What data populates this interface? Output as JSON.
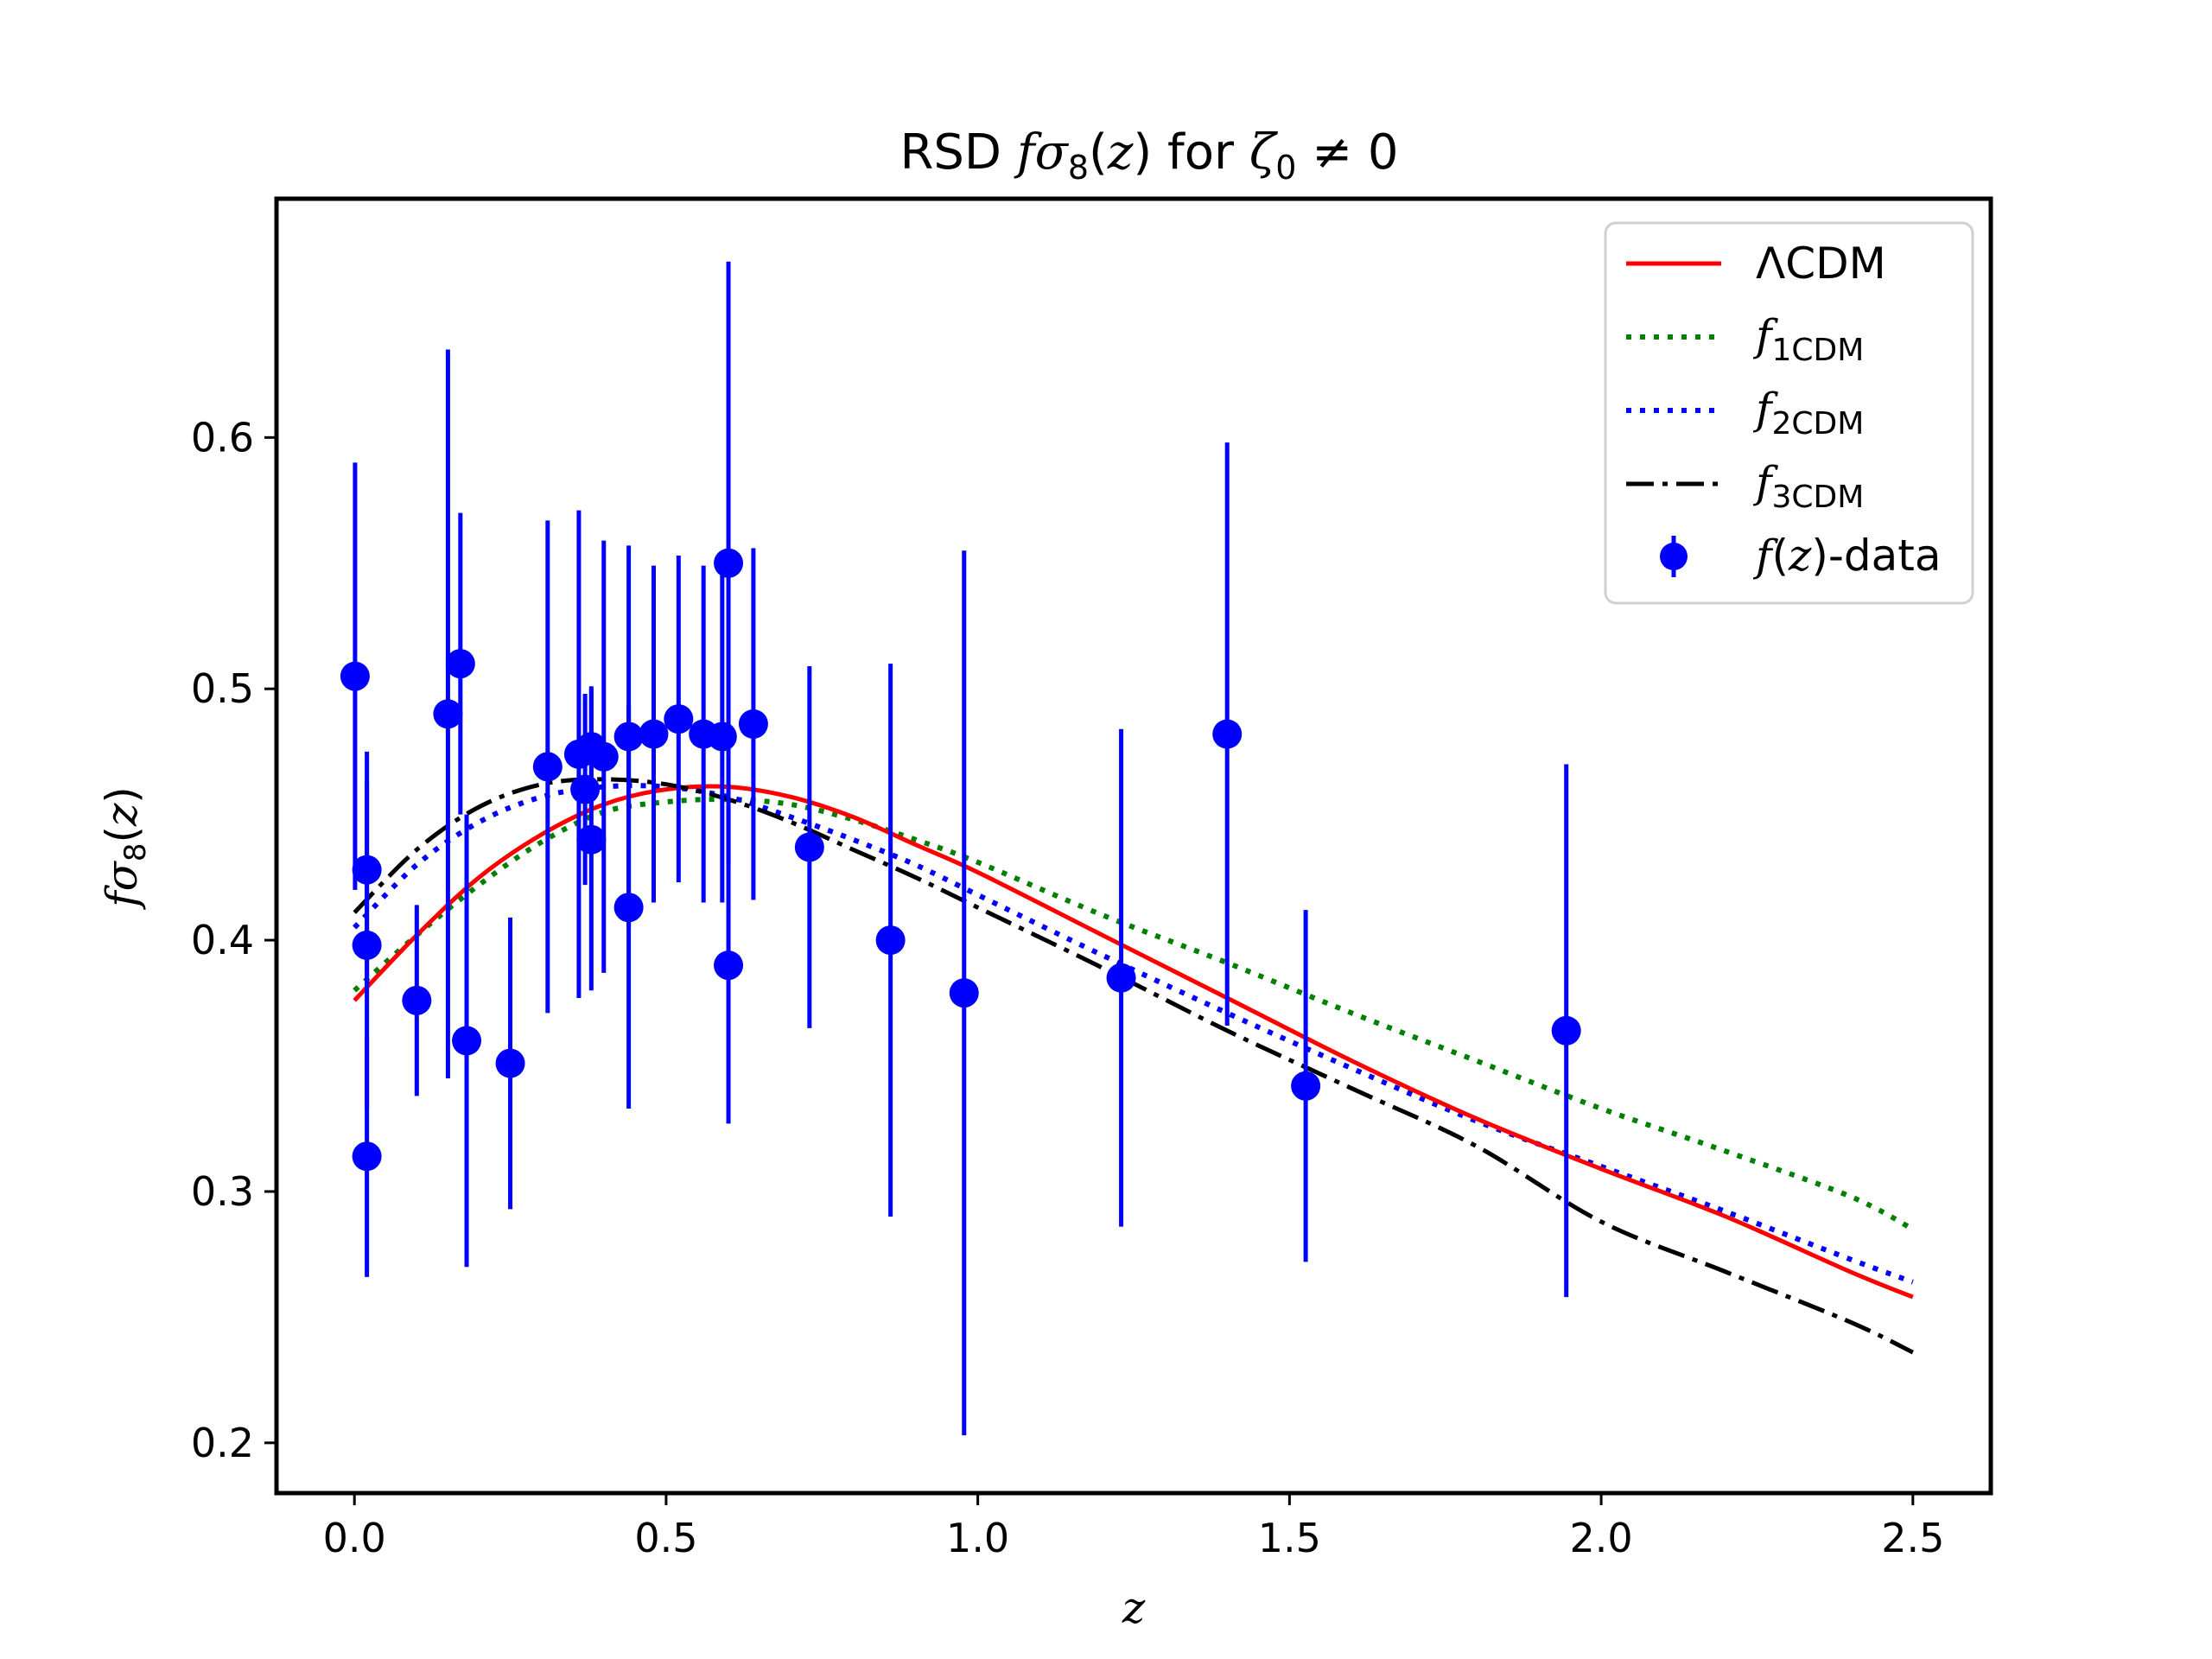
{
  "chart_data": {
    "type": "line",
    "title": {
      "prefix": "RSD ",
      "f": "f",
      "sigma": "σ",
      "sigma_sub": "8",
      "zexpr_open": "(",
      "zexpr_z": "z",
      "zexpr_close": ")",
      "middle": " for ",
      "zeta": "ζ",
      "zeta_sub": "0",
      "suffix": " ≠ 0"
    },
    "xlabel": "z",
    "ylabel": {
      "f": "f",
      "sigma": "σ",
      "sub": "8",
      "open": "(",
      "z": "z",
      "close": ")"
    },
    "xlim": [
      -0.125,
      2.625
    ],
    "ylim": [
      0.18,
      0.695
    ],
    "xticks": [
      0.0,
      0.5,
      1.0,
      1.5,
      2.0,
      2.5
    ],
    "xtick_labels": [
      "0.0",
      "0.5",
      "1.0",
      "1.5",
      "2.0",
      "2.5"
    ],
    "yticks": [
      0.2,
      0.3,
      0.4,
      0.5,
      0.6
    ],
    "ytick_labels": [
      "0.2",
      "0.3",
      "0.4",
      "0.5",
      "0.6"
    ],
    "grid": false,
    "legend_position": "top-right",
    "series": [
      {
        "name": "ΛCDM",
        "legend_main": "ΛCDM",
        "legend_sub": "",
        "color": "#ff0000",
        "style": "solid",
        "x": [
          0.0,
          0.1,
          0.2,
          0.3,
          0.4,
          0.5,
          0.6,
          0.7,
          0.8,
          0.9,
          1.0,
          1.2,
          1.4,
          1.6,
          1.8,
          2.0,
          2.2,
          2.4,
          2.5
        ],
        "y": [
          0.376,
          0.402,
          0.425,
          0.442,
          0.454,
          0.46,
          0.461,
          0.457,
          0.449,
          0.438,
          0.427,
          0.402,
          0.377,
          0.352,
          0.329,
          0.309,
          0.29,
          0.268,
          0.258
        ]
      },
      {
        "name": "f1CDM",
        "legend_main": "f",
        "legend_sub": "1CDM",
        "color": "#008000",
        "style": "dotted",
        "x": [
          0.0,
          0.1,
          0.2,
          0.3,
          0.4,
          0.5,
          0.6,
          0.7,
          0.8,
          0.9,
          1.0,
          1.2,
          1.4,
          1.6,
          1.8,
          2.0,
          2.2,
          2.4,
          2.5
        ],
        "y": [
          0.38,
          0.402,
          0.422,
          0.439,
          0.451,
          0.455,
          0.456,
          0.454,
          0.448,
          0.44,
          0.431,
          0.41,
          0.391,
          0.371,
          0.352,
          0.333,
          0.316,
          0.298,
          0.285
        ]
      },
      {
        "name": "f2CDM",
        "legend_main": "f",
        "legend_sub": "2CDM",
        "color": "#0000ff",
        "style": "dotted",
        "x": [
          0.0,
          0.1,
          0.2,
          0.3,
          0.4,
          0.5,
          0.6,
          0.7,
          0.8,
          0.9,
          1.0,
          1.2,
          1.4,
          1.6,
          1.8,
          2.0,
          2.2,
          2.4,
          2.5
        ],
        "y": [
          0.405,
          0.43,
          0.447,
          0.457,
          0.461,
          0.461,
          0.457,
          0.449,
          0.44,
          0.43,
          0.418,
          0.394,
          0.371,
          0.349,
          0.328,
          0.31,
          0.292,
          0.273,
          0.264
        ]
      },
      {
        "name": "f3CDM",
        "legend_main": "f",
        "legend_sub": "3CDM",
        "color": "#000000",
        "style": "dashdot",
        "x": [
          0.0,
          0.1,
          0.2,
          0.3,
          0.4,
          0.5,
          0.6,
          0.7,
          0.8,
          0.9,
          1.0,
          1.2,
          1.4,
          1.6,
          1.8,
          2.0,
          2.2,
          2.4,
          2.5
        ],
        "y": [
          0.411,
          0.436,
          0.453,
          0.462,
          0.464,
          0.462,
          0.456,
          0.447,
          0.436,
          0.425,
          0.413,
          0.389,
          0.364,
          0.341,
          0.318,
          0.288,
          0.268,
          0.248,
          0.236
        ]
      }
    ],
    "data_points": {
      "name": "f(z)-data",
      "legend_f": "f",
      "legend_open": "(",
      "legend_z": "z",
      "legend_tail": ")-data",
      "color": "#0000ff",
      "points": [
        {
          "z": 0.001,
          "y": 0.505,
          "err": 0.085
        },
        {
          "z": 0.02,
          "y": 0.428,
          "err": 0.047
        },
        {
          "z": 0.02,
          "y": 0.398,
          "err": 0.065
        },
        {
          "z": 0.02,
          "y": 0.314,
          "err": 0.048
        },
        {
          "z": 0.1,
          "y": 0.376,
          "err": 0.038
        },
        {
          "z": 0.15,
          "y": 0.49,
          "err": 0.145
        },
        {
          "z": 0.17,
          "y": 0.51,
          "err": 0.06
        },
        {
          "z": 0.18,
          "y": 0.36,
          "err": 0.09
        },
        {
          "z": 0.25,
          "y": 0.351,
          "err": 0.058
        },
        {
          "z": 0.31,
          "y": 0.469,
          "err": 0.098
        },
        {
          "z": 0.36,
          "y": 0.474,
          "err": 0.097
        },
        {
          "z": 0.37,
          "y": 0.46,
          "err": 0.038
        },
        {
          "z": 0.38,
          "y": 0.44,
          "err": 0.06
        },
        {
          "z": 0.38,
          "y": 0.477,
          "err": 0.024
        },
        {
          "z": 0.4,
          "y": 0.473,
          "err": 0.086
        },
        {
          "z": 0.44,
          "y": 0.413,
          "err": 0.08
        },
        {
          "z": 0.44,
          "y": 0.481,
          "err": 0.076
        },
        {
          "z": 0.48,
          "y": 0.482,
          "err": 0.067
        },
        {
          "z": 0.52,
          "y": 0.488,
          "err": 0.065
        },
        {
          "z": 0.56,
          "y": 0.482,
          "err": 0.067
        },
        {
          "z": 0.59,
          "y": 0.481,
          "err": 0.066
        },
        {
          "z": 0.6,
          "y": 0.55,
          "err": 0.12
        },
        {
          "z": 0.6,
          "y": 0.39,
          "err": 0.063
        },
        {
          "z": 0.64,
          "y": 0.486,
          "err": 0.07
        },
        {
          "z": 0.73,
          "y": 0.437,
          "err": 0.072
        },
        {
          "z": 0.86,
          "y": 0.4,
          "err": 0.11
        },
        {
          "z": 0.978,
          "y": 0.379,
          "err": 0.176
        },
        {
          "z": 1.23,
          "y": 0.385,
          "err": 0.099
        },
        {
          "z": 1.4,
          "y": 0.482,
          "err": 0.116
        },
        {
          "z": 1.526,
          "y": 0.342,
          "err": 0.07
        },
        {
          "z": 1.944,
          "y": 0.364,
          "err": 0.106
        }
      ]
    }
  }
}
